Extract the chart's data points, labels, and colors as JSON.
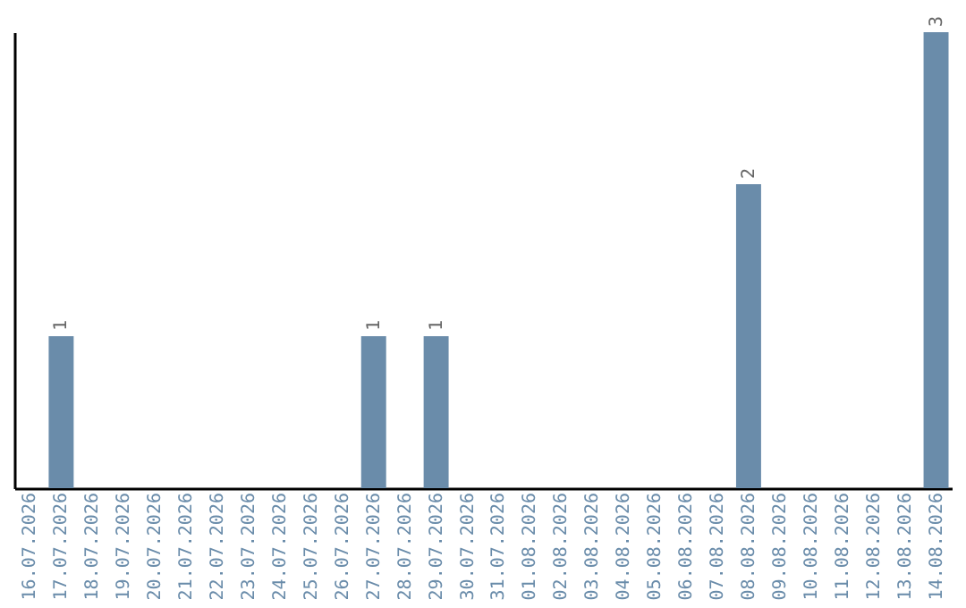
{
  "chart_data": {
    "type": "bar",
    "categories": [
      "16.07.2026",
      "17.07.2026",
      "18.07.2026",
      "19.07.2026",
      "20.07.2026",
      "21.07.2026",
      "22.07.2026",
      "23.07.2026",
      "24.07.2026",
      "25.07.2026",
      "26.07.2026",
      "27.07.2026",
      "28.07.2026",
      "29.07.2026",
      "30.07.2026",
      "31.07.2026",
      "01.08.2026",
      "02.08.2026",
      "03.08.2026",
      "04.08.2026",
      "05.08.2026",
      "06.08.2026",
      "07.08.2026",
      "08.08.2026",
      "09.08.2026",
      "10.08.2026",
      "11.08.2026",
      "12.08.2026",
      "13.08.2026",
      "14.08.2026"
    ],
    "values": [
      0,
      1,
      0,
      0,
      0,
      0,
      0,
      0,
      0,
      0,
      0,
      1,
      0,
      1,
      0,
      0,
      0,
      0,
      0,
      0,
      0,
      0,
      0,
      2,
      0,
      0,
      0,
      0,
      0,
      3
    ],
    "value_labels": [
      null,
      "1",
      null,
      null,
      null,
      null,
      null,
      null,
      null,
      null,
      null,
      "1",
      null,
      "1",
      null,
      null,
      null,
      null,
      null,
      null,
      null,
      null,
      null,
      "2",
      null,
      null,
      null,
      null,
      null,
      "3"
    ],
    "color": "#6a8caa",
    "tick_labels": "x",
    "grid": false
  }
}
